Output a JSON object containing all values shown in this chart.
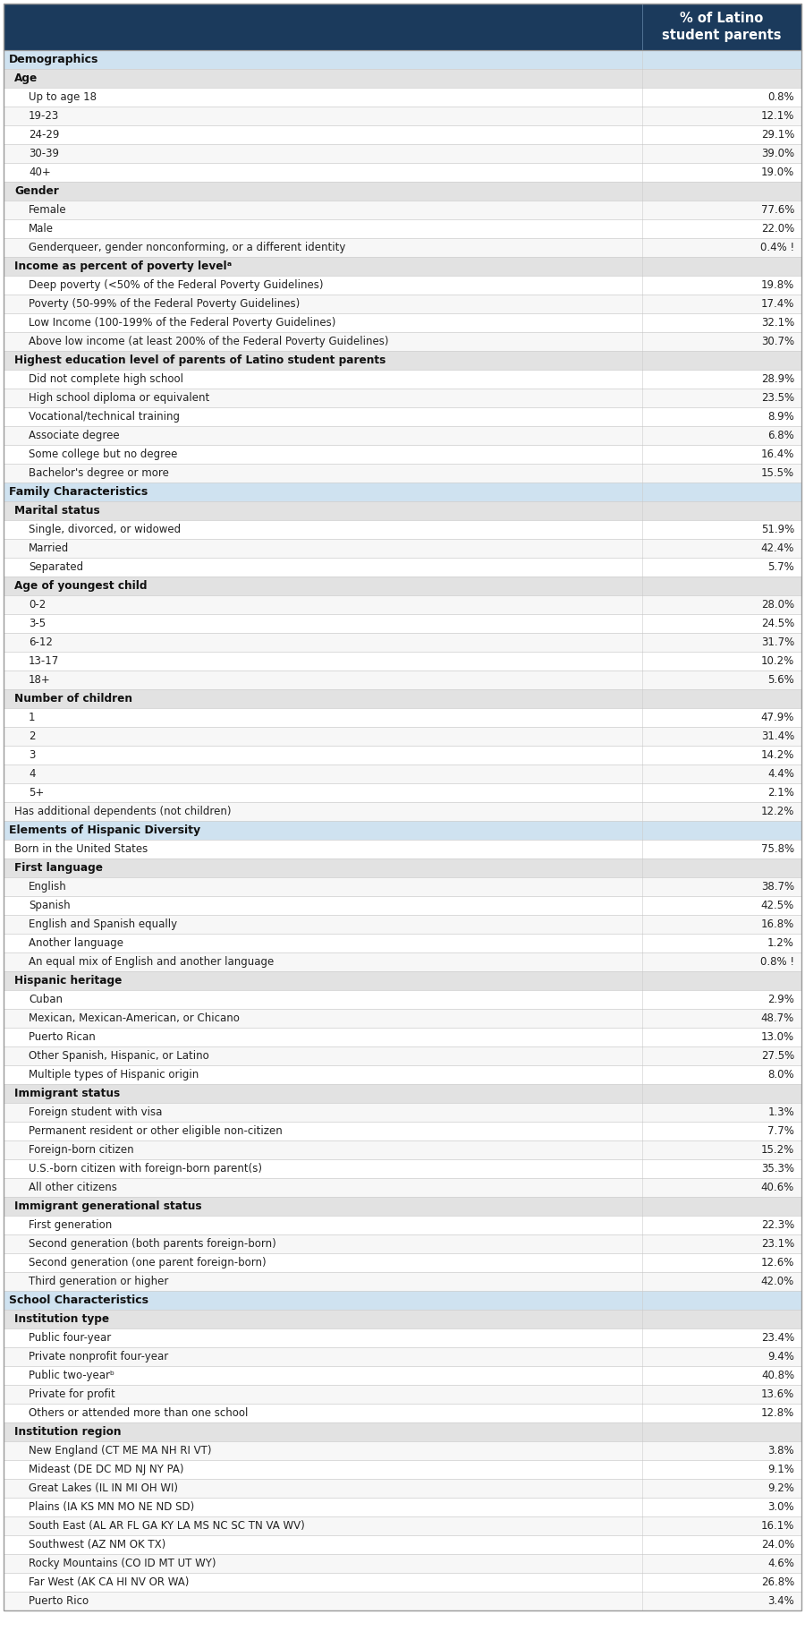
{
  "header_col2": "% of Latino\nstudent parents",
  "header_bg": "#1b3a5c",
  "section_bg": "#cfe2f0",
  "subsection_bg": "#e2e2e2",
  "border_color": "#999999",
  "grid_color": "#cccccc",
  "rows": [
    {
      "label": "Demographics",
      "value": "",
      "type": "section",
      "indent": 0
    },
    {
      "label": "Age",
      "value": "",
      "type": "subsection",
      "indent": 0
    },
    {
      "label": "Up to age 18",
      "value": "0.8%",
      "type": "data",
      "indent": 1
    },
    {
      "label": "19-23",
      "value": "12.1%",
      "type": "data",
      "indent": 1
    },
    {
      "label": "24-29",
      "value": "29.1%",
      "type": "data",
      "indent": 1
    },
    {
      "label": "30-39",
      "value": "39.0%",
      "type": "data",
      "indent": 1
    },
    {
      "label": "40+",
      "value": "19.0%",
      "type": "data",
      "indent": 1
    },
    {
      "label": "Gender",
      "value": "",
      "type": "subsection",
      "indent": 0
    },
    {
      "label": "Female",
      "value": "77.6%",
      "type": "data",
      "indent": 1
    },
    {
      "label": "Male",
      "value": "22.0%",
      "type": "data",
      "indent": 1
    },
    {
      "label": "Genderqueer, gender nonconforming, or a different identity",
      "value": "0.4% !",
      "type": "data",
      "indent": 1
    },
    {
      "label": "Income as percent of poverty levelᵃ",
      "value": "",
      "type": "subsection",
      "indent": 0
    },
    {
      "label": "Deep poverty (<50% of the Federal Poverty Guidelines)",
      "value": "19.8%",
      "type": "data",
      "indent": 1
    },
    {
      "label": "Poverty (50-99% of the Federal Poverty Guidelines)",
      "value": "17.4%",
      "type": "data",
      "indent": 1
    },
    {
      "label": "Low Income (100-199% of the Federal Poverty Guidelines)",
      "value": "32.1%",
      "type": "data",
      "indent": 1
    },
    {
      "label": "Above low income (at least 200% of the Federal Poverty Guidelines)",
      "value": "30.7%",
      "type": "data",
      "indent": 1
    },
    {
      "label": "Highest education level of parents of Latino student parents",
      "value": "",
      "type": "subsection",
      "indent": 0
    },
    {
      "label": "Did not complete high school",
      "value": "28.9%",
      "type": "data",
      "indent": 1
    },
    {
      "label": "High school diploma or equivalent",
      "value": "23.5%",
      "type": "data",
      "indent": 1
    },
    {
      "label": "Vocational/technical training",
      "value": "8.9%",
      "type": "data",
      "indent": 1
    },
    {
      "label": "Associate degree",
      "value": "6.8%",
      "type": "data",
      "indent": 1
    },
    {
      "label": "Some college but no degree",
      "value": "16.4%",
      "type": "data",
      "indent": 1
    },
    {
      "label": "Bachelor's degree or more",
      "value": "15.5%",
      "type": "data",
      "indent": 1
    },
    {
      "label": "Family Characteristics",
      "value": "",
      "type": "section",
      "indent": 0
    },
    {
      "label": "Marital status",
      "value": "",
      "type": "subsection",
      "indent": 0
    },
    {
      "label": "Single, divorced, or widowed",
      "value": "51.9%",
      "type": "data",
      "indent": 1
    },
    {
      "label": "Married",
      "value": "42.4%",
      "type": "data",
      "indent": 1
    },
    {
      "label": "Separated",
      "value": "5.7%",
      "type": "data",
      "indent": 1
    },
    {
      "label": "Age of youngest child",
      "value": "",
      "type": "subsection",
      "indent": 0
    },
    {
      "label": "0-2",
      "value": "28.0%",
      "type": "data",
      "indent": 1
    },
    {
      "label": "3-5",
      "value": "24.5%",
      "type": "data",
      "indent": 1
    },
    {
      "label": "6-12",
      "value": "31.7%",
      "type": "data",
      "indent": 1
    },
    {
      "label": "13-17",
      "value": "10.2%",
      "type": "data",
      "indent": 1
    },
    {
      "label": "18+",
      "value": "5.6%",
      "type": "data",
      "indent": 1
    },
    {
      "label": "Number of children",
      "value": "",
      "type": "subsection",
      "indent": 0
    },
    {
      "label": "1",
      "value": "47.9%",
      "type": "data",
      "indent": 1
    },
    {
      "label": "2",
      "value": "31.4%",
      "type": "data",
      "indent": 1
    },
    {
      "label": "3",
      "value": "14.2%",
      "type": "data",
      "indent": 1
    },
    {
      "label": "4",
      "value": "4.4%",
      "type": "data",
      "indent": 1
    },
    {
      "label": "5+",
      "value": "2.1%",
      "type": "data",
      "indent": 1
    },
    {
      "label": "Has additional dependents (not children)",
      "value": "12.2%",
      "type": "data",
      "indent": 0
    },
    {
      "label": "Elements of Hispanic Diversity",
      "value": "",
      "type": "section",
      "indent": 0
    },
    {
      "label": "Born in the United States",
      "value": "75.8%",
      "type": "data",
      "indent": 0
    },
    {
      "label": "First language",
      "value": "",
      "type": "subsection",
      "indent": 0
    },
    {
      "label": "English",
      "value": "38.7%",
      "type": "data",
      "indent": 1
    },
    {
      "label": "Spanish",
      "value": "42.5%",
      "type": "data",
      "indent": 1
    },
    {
      "label": "English and Spanish equally",
      "value": "16.8%",
      "type": "data",
      "indent": 1
    },
    {
      "label": "Another language",
      "value": "1.2%",
      "type": "data",
      "indent": 1
    },
    {
      "label": "An equal mix of English and another language",
      "value": "0.8% !",
      "type": "data",
      "indent": 1
    },
    {
      "label": "Hispanic heritage",
      "value": "",
      "type": "subsection",
      "indent": 0
    },
    {
      "label": "Cuban",
      "value": "2.9%",
      "type": "data",
      "indent": 1
    },
    {
      "label": "Mexican, Mexican-American, or Chicano",
      "value": "48.7%",
      "type": "data",
      "indent": 1
    },
    {
      "label": "Puerto Rican",
      "value": "13.0%",
      "type": "data",
      "indent": 1
    },
    {
      "label": "Other Spanish, Hispanic, or Latino",
      "value": "27.5%",
      "type": "data",
      "indent": 1
    },
    {
      "label": "Multiple types of Hispanic origin",
      "value": "8.0%",
      "type": "data",
      "indent": 1
    },
    {
      "label": "Immigrant status",
      "value": "",
      "type": "subsection",
      "indent": 0
    },
    {
      "label": "Foreign student with visa",
      "value": "1.3%",
      "type": "data",
      "indent": 1
    },
    {
      "label": "Permanent resident or other eligible non-citizen",
      "value": "7.7%",
      "type": "data",
      "indent": 1
    },
    {
      "label": "Foreign-born citizen",
      "value": "15.2%",
      "type": "data",
      "indent": 1
    },
    {
      "label": "U.S.-born citizen with foreign-born parent(s)",
      "value": "35.3%",
      "type": "data",
      "indent": 1
    },
    {
      "label": "All other citizens",
      "value": "40.6%",
      "type": "data",
      "indent": 1
    },
    {
      "label": "Immigrant generational status",
      "value": "",
      "type": "subsection",
      "indent": 0
    },
    {
      "label": "First generation",
      "value": "22.3%",
      "type": "data",
      "indent": 1
    },
    {
      "label": "Second generation (both parents foreign-born)",
      "value": "23.1%",
      "type": "data",
      "indent": 1
    },
    {
      "label": "Second generation (one parent foreign-born)",
      "value": "12.6%",
      "type": "data",
      "indent": 1
    },
    {
      "label": "Third generation or higher",
      "value": "42.0%",
      "type": "data",
      "indent": 1
    },
    {
      "label": "School Characteristics",
      "value": "",
      "type": "section",
      "indent": 0
    },
    {
      "label": "Institution type",
      "value": "",
      "type": "subsection",
      "indent": 0
    },
    {
      "label": "Public four-year",
      "value": "23.4%",
      "type": "data",
      "indent": 1
    },
    {
      "label": "Private nonprofit four-year",
      "value": "9.4%",
      "type": "data",
      "indent": 1
    },
    {
      "label": "Public two-yearᵇ",
      "value": "40.8%",
      "type": "data",
      "indent": 1
    },
    {
      "label": "Private for profit",
      "value": "13.6%",
      "type": "data",
      "indent": 1
    },
    {
      "label": "Others or attended more than one school",
      "value": "12.8%",
      "type": "data",
      "indent": 1
    },
    {
      "label": "Institution region",
      "value": "",
      "type": "subsection",
      "indent": 0
    },
    {
      "label": "New England (CT ME MA NH RI VT)",
      "value": "3.8%",
      "type": "data",
      "indent": 1
    },
    {
      "label": "Mideast (DE DC MD NJ NY PA)",
      "value": "9.1%",
      "type": "data",
      "indent": 1
    },
    {
      "label": "Great Lakes (IL IN MI OH WI)",
      "value": "9.2%",
      "type": "data",
      "indent": 1
    },
    {
      "label": "Plains (IA KS MN MO NE ND SD)",
      "value": "3.0%",
      "type": "data",
      "indent": 1
    },
    {
      "label": "South East (AL AR FL GA KY LA MS NC SC TN VA WV)",
      "value": "16.1%",
      "type": "data",
      "indent": 1
    },
    {
      "label": "Southwest (AZ NM OK TX)",
      "value": "24.0%",
      "type": "data",
      "indent": 1
    },
    {
      "label": "Rocky Mountains (CO ID MT UT WY)",
      "value": "4.6%",
      "type": "data",
      "indent": 1
    },
    {
      "label": "Far West (AK CA HI NV OR WA)",
      "value": "26.8%",
      "type": "data",
      "indent": 1
    },
    {
      "label": "Puerto Rico",
      "value": "3.4%",
      "type": "data",
      "indent": 1
    }
  ]
}
